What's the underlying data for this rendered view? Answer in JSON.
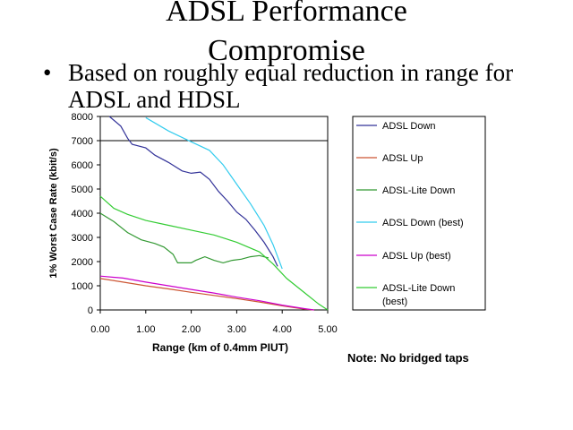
{
  "slide": {
    "title_line1": "ADSL Performance",
    "title_line2": "Compromise",
    "bullet": "Based on roughly equal reduction in range for ADSL and HDSL",
    "note": "Note: No bridged taps"
  },
  "chart_data": {
    "type": "line",
    "xlabel": "Range (km of 0.4mm PIUT)",
    "ylabel": "1% Worst Case Rate (kbit/s)",
    "xlim": [
      0,
      5
    ],
    "ylim": [
      0,
      8000
    ],
    "x_ticks": [
      "0.00",
      "1.00",
      "2.00",
      "3.00",
      "4.00",
      "5.00"
    ],
    "y_ticks": [
      "0",
      "1000",
      "2000",
      "3000",
      "4000",
      "5000",
      "6000",
      "7000",
      "8000"
    ],
    "gridlines_y": [
      7000
    ],
    "legend_position": "right",
    "series": [
      {
        "name": "ADSL Down",
        "color": "#333399",
        "points": [
          [
            0.2,
            8000
          ],
          [
            0.45,
            7600
          ],
          [
            0.6,
            7100
          ],
          [
            0.7,
            6850
          ],
          [
            1.0,
            6700
          ],
          [
            1.2,
            6400
          ],
          [
            1.5,
            6100
          ],
          [
            1.8,
            5750
          ],
          [
            2.0,
            5650
          ],
          [
            2.2,
            5700
          ],
          [
            2.4,
            5400
          ],
          [
            2.6,
            4900
          ],
          [
            2.8,
            4500
          ],
          [
            3.0,
            4050
          ],
          [
            3.2,
            3750
          ],
          [
            3.4,
            3300
          ],
          [
            3.6,
            2800
          ],
          [
            3.8,
            2200
          ],
          [
            3.9,
            1800
          ]
        ]
      },
      {
        "name": "ADSL Up",
        "color": "#cc5533",
        "points": [
          [
            0.0,
            1300
          ],
          [
            0.5,
            1150
          ],
          [
            1.0,
            1000
          ],
          [
            1.5,
            870
          ],
          [
            2.0,
            730
          ],
          [
            2.5,
            600
          ],
          [
            3.0,
            470
          ],
          [
            3.5,
            330
          ],
          [
            4.0,
            170
          ],
          [
            4.5,
            30
          ],
          [
            4.7,
            0
          ]
        ]
      },
      {
        "name": "ADSL-Lite Down",
        "color": "#339933",
        "points": [
          [
            0.0,
            4000
          ],
          [
            0.3,
            3650
          ],
          [
            0.6,
            3200
          ],
          [
            0.9,
            2900
          ],
          [
            1.2,
            2750
          ],
          [
            1.4,
            2600
          ],
          [
            1.6,
            2300
          ],
          [
            1.7,
            1950
          ],
          [
            2.0,
            1950
          ],
          [
            2.1,
            2050
          ],
          [
            2.3,
            2200
          ],
          [
            2.5,
            2050
          ],
          [
            2.7,
            1950
          ],
          [
            2.9,
            2050
          ],
          [
            3.1,
            2100
          ],
          [
            3.3,
            2200
          ],
          [
            3.5,
            2250
          ],
          [
            3.7,
            2150
          ]
        ]
      },
      {
        "name": "ADSL Down (best)",
        "color": "#33ccee",
        "points": [
          [
            1.0,
            7950
          ],
          [
            1.5,
            7400
          ],
          [
            2.0,
            6950
          ],
          [
            2.4,
            6600
          ],
          [
            2.7,
            6000
          ],
          [
            3.0,
            5200
          ],
          [
            3.3,
            4400
          ],
          [
            3.6,
            3500
          ],
          [
            3.8,
            2700
          ],
          [
            4.0,
            1700
          ]
        ]
      },
      {
        "name": "ADSL Up (best)",
        "color": "#cc00cc",
        "points": [
          [
            0.0,
            1400
          ],
          [
            0.5,
            1320
          ],
          [
            1.0,
            1150
          ],
          [
            1.5,
            1000
          ],
          [
            2.0,
            850
          ],
          [
            2.5,
            700
          ],
          [
            3.0,
            530
          ],
          [
            3.5,
            380
          ],
          [
            4.0,
            200
          ],
          [
            4.5,
            50
          ],
          [
            4.7,
            0
          ]
        ]
      },
      {
        "name": "ADSL-Lite Down (best)",
        "color": "#33cc33",
        "points": [
          [
            0.0,
            4700
          ],
          [
            0.3,
            4200
          ],
          [
            0.6,
            3950
          ],
          [
            1.0,
            3700
          ],
          [
            1.5,
            3500
          ],
          [
            2.0,
            3300
          ],
          [
            2.5,
            3100
          ],
          [
            3.0,
            2800
          ],
          [
            3.5,
            2400
          ],
          [
            3.8,
            1900
          ],
          [
            4.1,
            1300
          ],
          [
            4.5,
            700
          ],
          [
            4.8,
            250
          ],
          [
            5.0,
            0
          ]
        ]
      }
    ]
  }
}
